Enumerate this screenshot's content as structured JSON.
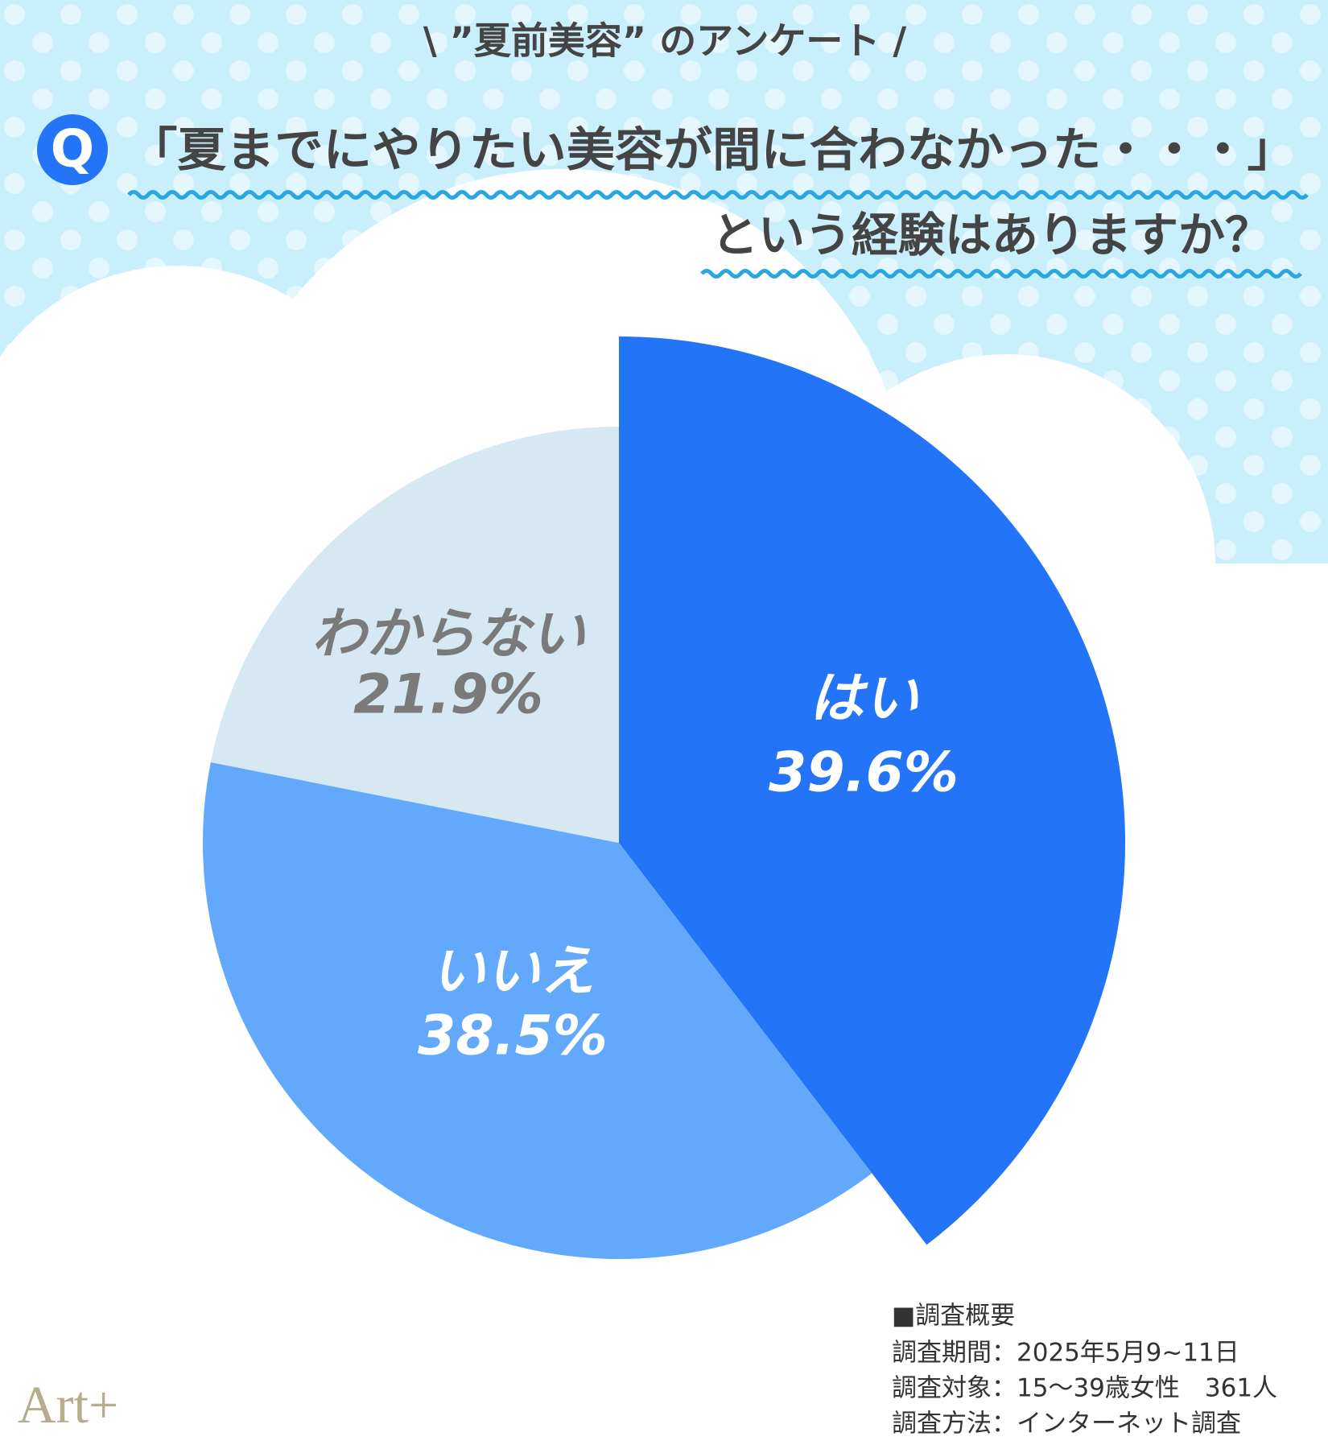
{
  "header": "\\ ”夏前美容” のアンケート /",
  "q_mark": "Q",
  "chart_data": {
    "type": "pie",
    "title": [
      "「夏までにやりたい美容が間に合わなかった・・・」",
      "という経験はありますか？"
    ],
    "categories": [
      "はい",
      "いいえ",
      "わからない"
    ],
    "values": [
      39.6,
      38.5,
      21.9
    ],
    "value_labels": [
      "39.6%",
      "38.5%",
      "21.9%"
    ],
    "colors": [
      "#2374f7",
      "#62a8fc",
      "#d6e8f1"
    ],
    "label_colors": [
      "#ffffff",
      "#ffffff",
      "#7a7a7a"
    ]
  },
  "survey": {
    "heading": "■調査概要",
    "lines": [
      "調査期間：2025年5月9~11日",
      "調査対象：15～39歳女性　361人",
      "調査方法：インターネット調査"
    ]
  },
  "logo": "Art+"
}
